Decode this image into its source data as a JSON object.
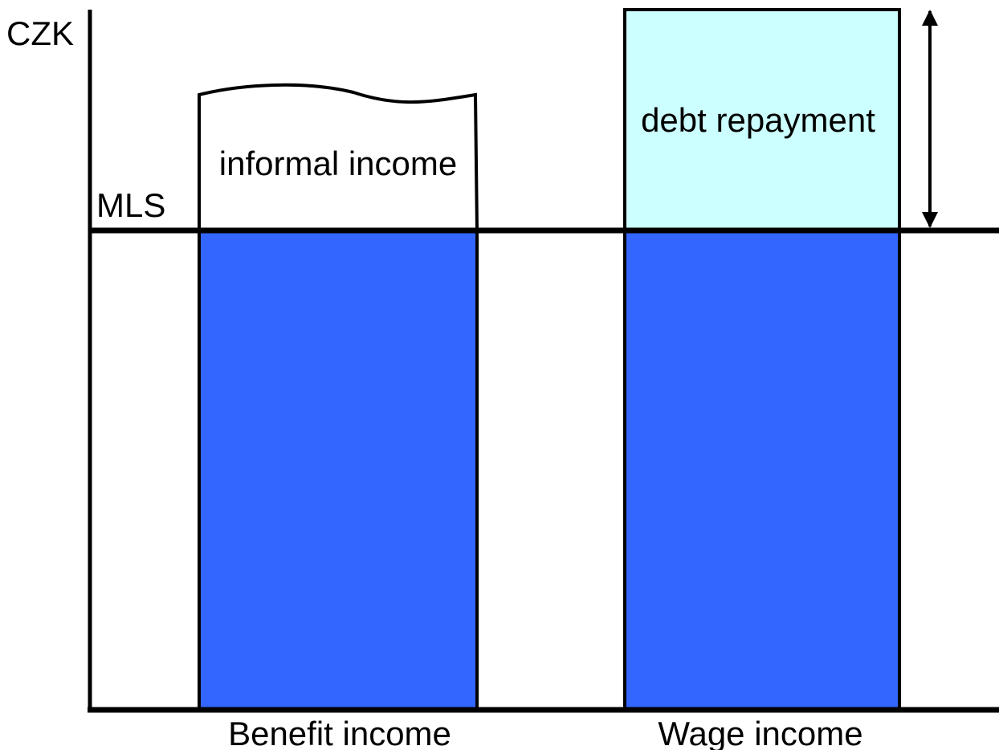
{
  "axis": {
    "y_label": "CZK",
    "reference_line": "MLS"
  },
  "bars": [
    {
      "label": "Benefit income",
      "top_segment": "informal income"
    },
    {
      "label": "Wage income",
      "top_segment": "debt repayment"
    }
  ]
}
